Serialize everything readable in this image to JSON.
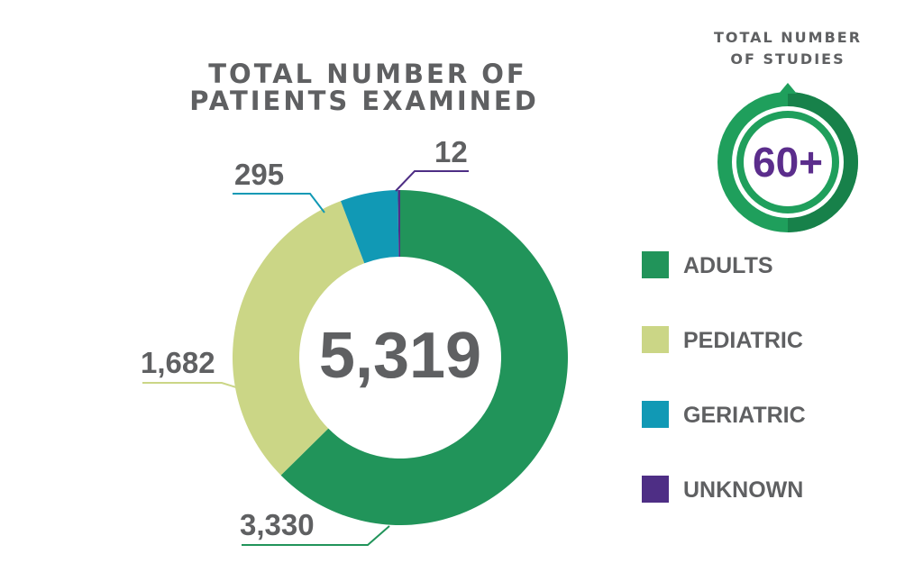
{
  "chart_data": {
    "type": "pie",
    "title": "TOTAL NUMBER OF PATIENTS EXAMINED",
    "title_lines": [
      "TOTAL NUMBER OF",
      "PATIENTS EXAMINED"
    ],
    "total_label": "5,319",
    "categories": [
      "ADULTS",
      "PEDIATRIC",
      "GERIATRIC",
      "UNKNOWN"
    ],
    "values": [
      3330,
      1682,
      295,
      12
    ],
    "value_labels": [
      "3,330",
      "1,682",
      "295",
      "12"
    ],
    "colors": [
      "#21945a",
      "#cbd686",
      "#1199b5",
      "#4e2e85"
    ],
    "legend_position": "right"
  },
  "studies": {
    "title_lines": [
      "TOTAL NUMBER",
      "OF STUDIES"
    ],
    "value": "60+",
    "ring_color": "#1f9f5c",
    "ring_dark": "#17814a"
  }
}
